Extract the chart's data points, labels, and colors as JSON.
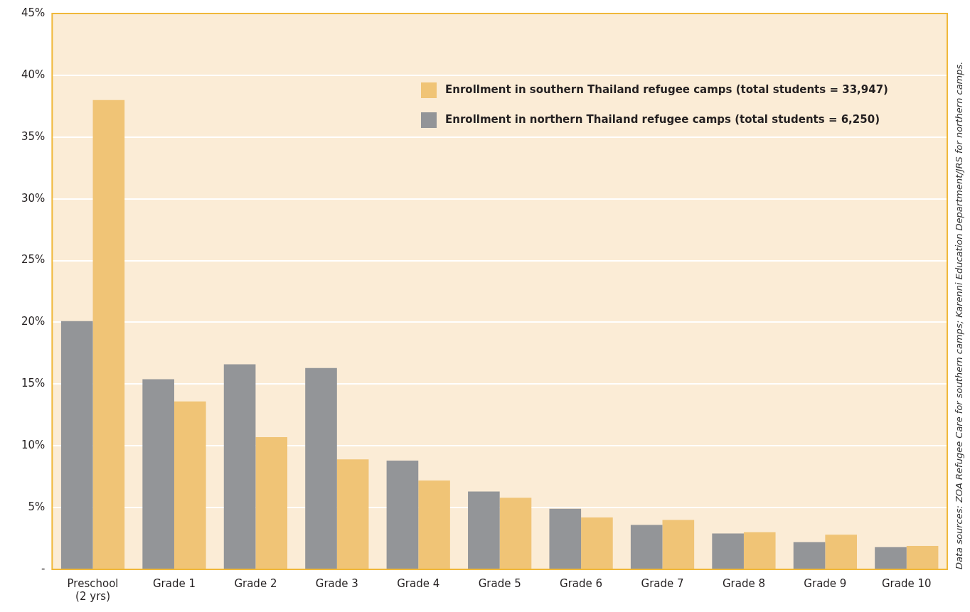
{
  "chart_data": {
    "type": "bar",
    "categories": [
      "Preschool\n(2 yrs)",
      "Grade 1",
      "Grade 2",
      "Grade 3",
      "Grade 4",
      "Grade 5",
      "Grade 6",
      "Grade 7",
      "Grade 8",
      "Grade 9",
      "Grade 10"
    ],
    "series": [
      {
        "name": "Enrollment in northern Thailand refugee camps (total students = 6,250)",
        "color": "#939598",
        "values": [
          20.1,
          15.4,
          16.6,
          16.3,
          8.8,
          6.3,
          4.9,
          3.6,
          2.9,
          2.2,
          1.8
        ]
      },
      {
        "name": "Enrollment in southern Thailand refugee camps (total students = 33,947)",
        "color": "#f0c476",
        "values": [
          38.0,
          13.6,
          10.7,
          8.9,
          7.2,
          5.8,
          4.2,
          4.0,
          3.0,
          2.8,
          1.9
        ]
      }
    ],
    "ylim": [
      0,
      45
    ],
    "yticks": [
      {
        "value": 0,
        "label": "-"
      },
      {
        "value": 5,
        "label": "5%"
      },
      {
        "value": 10,
        "label": "10%"
      },
      {
        "value": 15,
        "label": "15%"
      },
      {
        "value": 20,
        "label": "20%"
      },
      {
        "value": 25,
        "label": "25%"
      },
      {
        "value": 30,
        "label": "30%"
      },
      {
        "value": 35,
        "label": "35%"
      },
      {
        "value": 40,
        "label": "40%"
      },
      {
        "value": 45,
        "label": "45%"
      }
    ],
    "grid": "y",
    "legend": "top right",
    "annotations": [
      "Data sources: ZOA Refugee Care for southern camps; Karenni Education Department/JRS for northern camps."
    ]
  }
}
